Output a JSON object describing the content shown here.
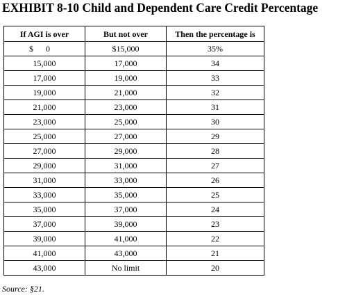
{
  "title": "EXHIBIT 8-10 Child and Dependent Care Credit Percentage",
  "table": {
    "headers": [
      "If AGI is over",
      "But not over",
      "Then the percentage is"
    ],
    "first_row": {
      "currency": "$",
      "agi_over": "0",
      "not_over": "$15,000",
      "percentage": "35%"
    },
    "rows": [
      [
        "15,000",
        "17,000",
        "34"
      ],
      [
        "17,000",
        "19,000",
        "33"
      ],
      [
        "19,000",
        "21,000",
        "32"
      ],
      [
        "21,000",
        "23,000",
        "31"
      ],
      [
        "23,000",
        "25,000",
        "30"
      ],
      [
        "25,000",
        "27,000",
        "29"
      ],
      [
        "27,000",
        "29,000",
        "28"
      ],
      [
        "29,000",
        "31,000",
        "27"
      ],
      [
        "31,000",
        "33,000",
        "26"
      ],
      [
        "33,000",
        "35,000",
        "25"
      ],
      [
        "35,000",
        "37,000",
        "24"
      ],
      [
        "37,000",
        "39,000",
        "23"
      ],
      [
        "39,000",
        "41,000",
        "22"
      ],
      [
        "41,000",
        "43,000",
        "21"
      ],
      [
        "43,000",
        "No limit",
        "20"
      ]
    ]
  },
  "source": "Source: §21."
}
